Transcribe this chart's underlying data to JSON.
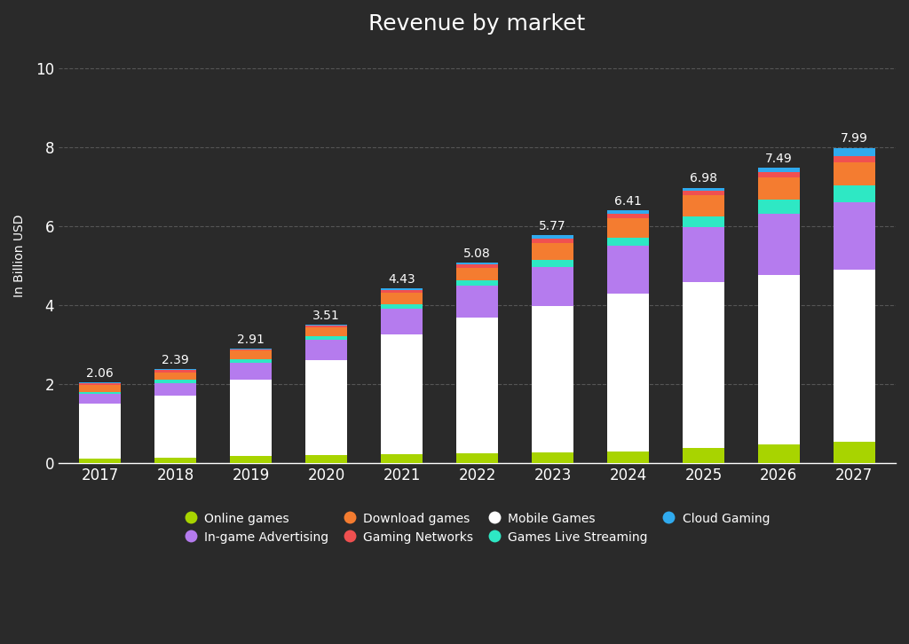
{
  "years": [
    "2017",
    "2018",
    "2019",
    "2020",
    "2021",
    "2022",
    "2023",
    "2024",
    "2025",
    "2026",
    "2027"
  ],
  "totals": [
    2.06,
    2.39,
    2.91,
    3.51,
    4.43,
    5.08,
    5.77,
    6.41,
    6.98,
    7.49,
    7.99
  ],
  "segments": {
    "Online games": [
      0.13,
      0.15,
      0.18,
      0.2,
      0.23,
      0.25,
      0.28,
      0.3,
      0.4,
      0.48,
      0.55
    ],
    "Mobile Games": [
      1.38,
      1.57,
      1.95,
      2.41,
      3.03,
      3.44,
      3.7,
      4.0,
      4.2,
      4.3,
      4.35
    ],
    "In-game Advertising": [
      0.25,
      0.32,
      0.42,
      0.52,
      0.65,
      0.8,
      1.0,
      1.2,
      1.38,
      1.55,
      1.72
    ],
    "Games Live Streaming": [
      0.05,
      0.07,
      0.08,
      0.09,
      0.12,
      0.14,
      0.17,
      0.22,
      0.28,
      0.35,
      0.42
    ],
    "Download games": [
      0.18,
      0.2,
      0.22,
      0.22,
      0.28,
      0.32,
      0.42,
      0.48,
      0.52,
      0.55,
      0.58
    ],
    "Gaming Networks": [
      0.04,
      0.05,
      0.04,
      0.04,
      0.08,
      0.09,
      0.12,
      0.13,
      0.12,
      0.14,
      0.15
    ],
    "Cloud Gaming": [
      0.03,
      0.03,
      0.02,
      0.03,
      0.04,
      0.04,
      0.08,
      0.08,
      0.08,
      0.12,
      0.22
    ]
  },
  "colors": {
    "Online games": "#a8d400",
    "Mobile Games": "#ffffff",
    "In-game Advertising": "#b57bee",
    "Games Live Streaming": "#2ee8c4",
    "Download games": "#f47c30",
    "Gaming Networks": "#f05050",
    "Cloud Gaming": "#30aaee"
  },
  "stack_order": [
    "Online games",
    "Mobile Games",
    "In-game Advertising",
    "Games Live Streaming",
    "Download games",
    "Gaming Networks",
    "Cloud Gaming"
  ],
  "legend_order": [
    "Online games",
    "In-game Advertising",
    "Download games",
    "Gaming Networks",
    "Mobile Games",
    "Games Live Streaming",
    "Cloud Gaming"
  ],
  "title": "Revenue by market",
  "ylabel": "In Billion USD",
  "ylim": [
    0,
    10.5
  ],
  "yticks": [
    0,
    2,
    4,
    6,
    8,
    10
  ],
  "background_color": "#2a2a2a",
  "text_color": "#ffffff",
  "grid_color": "#555555",
  "title_fontsize": 18,
  "label_fontsize": 10,
  "tick_fontsize": 12,
  "bar_width": 0.55
}
